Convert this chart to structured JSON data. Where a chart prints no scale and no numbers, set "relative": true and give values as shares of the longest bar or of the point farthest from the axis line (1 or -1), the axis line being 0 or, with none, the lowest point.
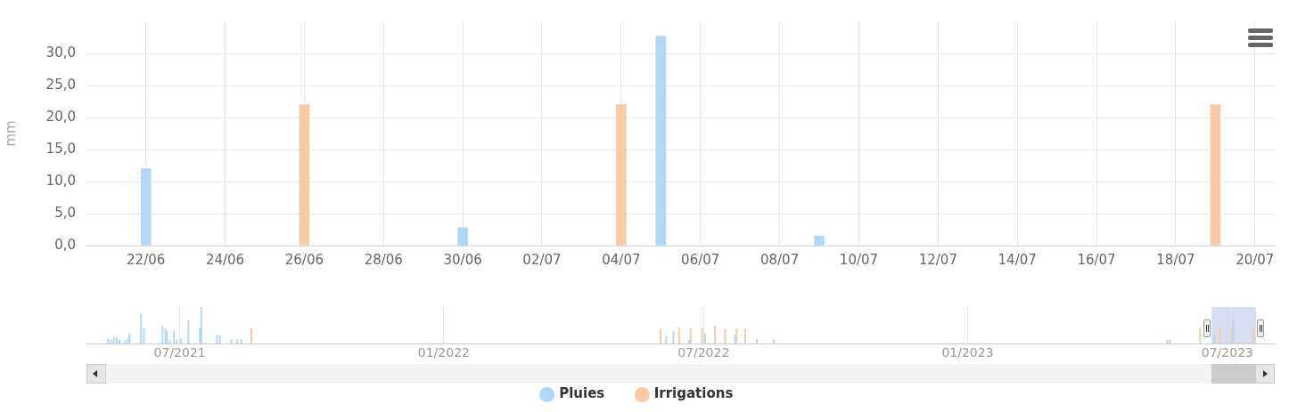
{
  "chart_data": [
    {
      "type": "bar",
      "ylabel": "mm",
      "categories": [
        null,
        "22/06",
        null,
        "24/06",
        null,
        "26/06",
        null,
        "28/06",
        null,
        "30/06",
        null,
        "02/07",
        null,
        "04/07",
        null,
        "06/07",
        null,
        "08/07",
        null,
        "10/07",
        null,
        "12/07",
        null,
        "14/07",
        null,
        "16/07",
        null,
        "18/07",
        null,
        "20/07"
      ],
      "series": [
        {
          "name": "Pluies",
          "color": "#b0d8f6",
          "values": [
            null,
            12,
            null,
            null,
            null,
            null,
            null,
            null,
            null,
            2.8,
            null,
            null,
            null,
            null,
            32.7,
            null,
            null,
            null,
            1.5,
            null,
            null,
            null,
            null,
            null,
            null,
            null,
            null,
            null,
            null,
            null
          ]
        },
        {
          "name": "Irrigations",
          "color": "#f7cba6",
          "values": [
            null,
            null,
            null,
            null,
            null,
            22,
            null,
            null,
            null,
            null,
            null,
            null,
            null,
            22,
            null,
            null,
            null,
            null,
            null,
            null,
            null,
            null,
            null,
            null,
            null,
            null,
            null,
            null,
            22,
            null
          ]
        }
      ],
      "ylim": [
        0,
        35
      ],
      "yticks": [
        {
          "value": 0,
          "label": "0,0"
        },
        {
          "value": 5,
          "label": "5,0"
        },
        {
          "value": 10,
          "label": "10,0"
        },
        {
          "value": 15,
          "label": "15,0"
        },
        {
          "value": 20,
          "label": "20,0"
        },
        {
          "value": 25,
          "label": "25,0"
        },
        {
          "value": 30,
          "label": "30,0"
        }
      ],
      "grid": true,
      "legend": "bottom"
    },
    {
      "type": "bar",
      "relative": true,
      "series": [
        {
          "color": "#b0d8f6",
          "x": [
            "2021-05-12",
            "2021-05-14",
            "2021-05-16",
            "2021-05-18",
            "2021-05-20",
            "2021-05-24",
            "2021-05-26",
            "2021-05-27",
            "2021-06-04",
            "2021-06-06",
            "2021-06-19",
            "2021-06-21",
            "2021-06-22",
            "2021-06-24",
            "2021-06-27",
            "2021-06-29",
            "2021-07-02",
            "2021-07-07",
            "2021-07-15",
            "2021-07-16",
            "2021-07-27",
            "2021-07-29",
            "2021-08-06",
            "2021-08-10",
            "2021-08-13",
            "2022-06-05",
            "2022-06-10",
            "2022-06-21",
            "2022-07-02",
            "2022-07-23",
            "2022-08-07",
            "2022-08-19",
            "2023-05-20",
            "2023-05-22",
            "2023-06-22",
            "2023-06-30",
            "2023-07-05",
            "2023-07-09"
          ],
          "values": [
            0.13,
            0.1,
            0.17,
            0.16,
            0.1,
            0.1,
            0.16,
            0.27,
            0.83,
            0.43,
            0.47,
            0.41,
            0.35,
            0.08,
            0.35,
            0.1,
            0.14,
            0.63,
            0.43,
            1,
            0.23,
            0.23,
            0.12,
            0.12,
            0.12,
            0.21,
            0.33,
            0.09,
            0.27,
            0.23,
            0.12,
            0.12,
            0.1,
            0.1,
            0.24,
            0.06,
            0.65,
            0.03
          ]
        },
        {
          "color": "#f7cba6",
          "x": [
            "2021-08-20",
            "2022-06-01",
            "2022-06-14",
            "2022-06-22",
            "2022-06-30",
            "2022-07-09",
            "2022-07-16",
            "2022-07-24",
            "2022-07-30",
            "2023-06-12",
            "2023-06-26",
            "2023-07-04",
            "2023-07-19"
          ],
          "values": [
            0.41,
            0.39,
            0.43,
            0.41,
            0.41,
            0.48,
            0.41,
            0.41,
            0.41,
            0.43,
            0.43,
            0.43,
            0.43
          ]
        }
      ],
      "xlim": [
        "2021-04-27",
        "2023-08-03"
      ],
      "xticks": [
        {
          "value": "2021-07",
          "label": "07/2021"
        },
        {
          "value": "2022-01",
          "label": "01/2022"
        },
        {
          "value": "2022-07",
          "label": "07/2022"
        },
        {
          "value": "2023-01",
          "label": "01/2023"
        },
        {
          "value": "2023-07",
          "label": "07/2023"
        }
      ],
      "grid": "x",
      "bands": [
        {
          "axis": "x",
          "from": "2023-06-20",
          "to": "2023-07-21",
          "color": "#ccd6eb"
        }
      ]
    }
  ]
}
